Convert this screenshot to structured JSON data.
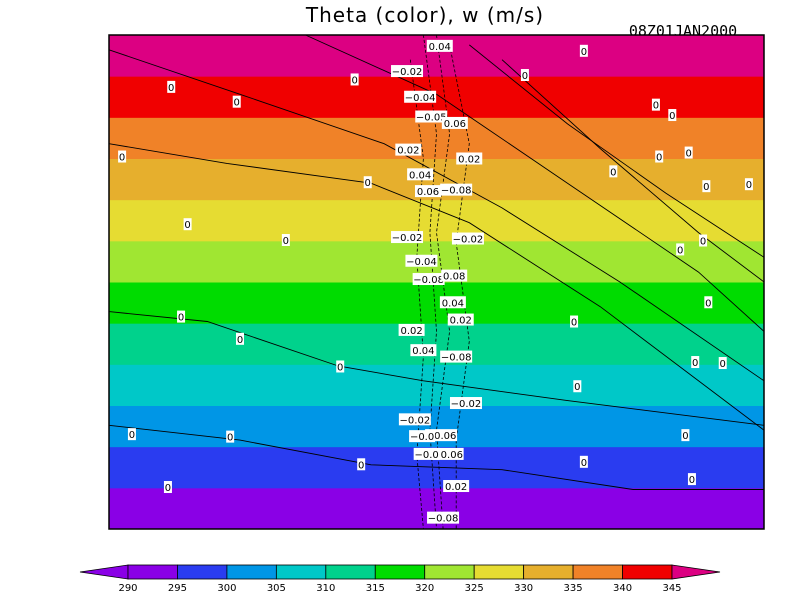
{
  "title": "Theta (color), w (m/s)",
  "timestamp": "08Z01JAN2000",
  "chart_data": {
    "type": "heatmap",
    "title": "Theta (color), w (m/s)",
    "timestamp": "08Z01JAN2000",
    "shaded_variable": "Theta",
    "contour_variable": "w (m/s)",
    "theta_levels": [
      290,
      295,
      300,
      305,
      310,
      315,
      320,
      325,
      330,
      335,
      340,
      345
    ],
    "bands_bottom_to_top": [
      {
        "range": [
          290,
          295
        ],
        "color": "#8a00e6"
      },
      {
        "range": [
          295,
          300
        ],
        "color": "#2a3cf0"
      },
      {
        "range": [
          300,
          305
        ],
        "color": "#0096e6"
      },
      {
        "range": [
          305,
          310
        ],
        "color": "#00c8c8"
      },
      {
        "range": [
          310,
          315
        ],
        "color": "#00d28c"
      },
      {
        "range": [
          315,
          320
        ],
        "color": "#00dc00"
      },
      {
        "range": [
          320,
          325
        ],
        "color": "#a0e632"
      },
      {
        "range": [
          325,
          330
        ],
        "color": "#e6dc32"
      },
      {
        "range": [
          330,
          335
        ],
        "color": "#e6af2d"
      },
      {
        "range": [
          335,
          340
        ],
        "color": "#f08228"
      },
      {
        "range": [
          340,
          345
        ],
        "color": "#f00000"
      },
      {
        "range": [
          345,
          350
        ],
        "color": "#dc0082"
      }
    ],
    "colorbar": {
      "ticks": [
        "290",
        "295",
        "300",
        "305",
        "310",
        "315",
        "320",
        "325",
        "330",
        "335",
        "340",
        "345"
      ],
      "colors": [
        "#8a00e6",
        "#8a00e6",
        "#2a3cf0",
        "#0096e6",
        "#00c8c8",
        "#00d28c",
        "#00dc00",
        "#a0e632",
        "#e6dc32",
        "#e6af2d",
        "#f08228",
        "#f00000",
        "#dc0082"
      ]
    },
    "w_contour_labels": [
      {
        "text": "0.04",
        "u": 0.505,
        "v": 0.022
      },
      {
        "text": "−0.02",
        "u": 0.455,
        "v": 0.073
      },
      {
        "text": "−0.04",
        "u": 0.475,
        "v": 0.125
      },
      {
        "text": "−0.05",
        "u": 0.492,
        "v": 0.165
      },
      {
        "text": "0.06",
        "u": 0.528,
        "v": 0.178
      },
      {
        "text": "0.02",
        "u": 0.457,
        "v": 0.232
      },
      {
        "text": "0.02",
        "u": 0.55,
        "v": 0.25
      },
      {
        "text": "0.04",
        "u": 0.475,
        "v": 0.282
      },
      {
        "text": "0.06",
        "u": 0.487,
        "v": 0.316
      },
      {
        "text": "−0.08",
        "u": 0.53,
        "v": 0.313
      },
      {
        "text": "−0.02",
        "u": 0.455,
        "v": 0.409
      },
      {
        "text": "−0.02",
        "u": 0.548,
        "v": 0.412
      },
      {
        "text": "−0.04",
        "u": 0.477,
        "v": 0.457
      },
      {
        "text": "−0.08",
        "u": 0.488,
        "v": 0.494
      },
      {
        "text": "0.08",
        "u": 0.527,
        "v": 0.487
      },
      {
        "text": "0.04",
        "u": 0.525,
        "v": 0.541
      },
      {
        "text": "0.02",
        "u": 0.537,
        "v": 0.576
      },
      {
        "text": "0.02",
        "u": 0.462,
        "v": 0.597
      },
      {
        "text": "0.04",
        "u": 0.48,
        "v": 0.638
      },
      {
        "text": "−0.08",
        "u": 0.53,
        "v": 0.651
      },
      {
        "text": "−0.02",
        "u": 0.545,
        "v": 0.745
      },
      {
        "text": "−0.02",
        "u": 0.467,
        "v": 0.778
      },
      {
        "text": "−0.06",
        "u": 0.507,
        "v": 0.81
      },
      {
        "text": "−0.0",
        "u": 0.478,
        "v": 0.812
      },
      {
        "text": "−0.06",
        "u": 0.517,
        "v": 0.848
      },
      {
        "text": "−0.0",
        "u": 0.485,
        "v": 0.848
      },
      {
        "text": "0.02",
        "u": 0.53,
        "v": 0.913
      },
      {
        "text": "−0.08",
        "u": 0.51,
        "v": 0.977
      }
    ],
    "zero_contour_labels": [
      {
        "text": "0",
        "u": 0.095,
        "v": 0.105
      },
      {
        "text": "0",
        "u": 0.195,
        "v": 0.135
      },
      {
        "text": "0",
        "u": 0.375,
        "v": 0.09
      },
      {
        "text": "0",
        "u": 0.02,
        "v": 0.246
      },
      {
        "text": "0",
        "u": 0.395,
        "v": 0.298
      },
      {
        "text": "0",
        "u": 0.12,
        "v": 0.383
      },
      {
        "text": "0",
        "u": 0.27,
        "v": 0.415
      },
      {
        "text": "0",
        "u": 0.725,
        "v": 0.032
      },
      {
        "text": "0",
        "u": 0.635,
        "v": 0.081
      },
      {
        "text": "0",
        "u": 0.835,
        "v": 0.141
      },
      {
        "text": "0",
        "u": 0.86,
        "v": 0.162
      },
      {
        "text": "0",
        "u": 0.84,
        "v": 0.246
      },
      {
        "text": "0",
        "u": 0.885,
        "v": 0.238
      },
      {
        "text": "0",
        "u": 0.77,
        "v": 0.276
      },
      {
        "text": "0",
        "u": 0.912,
        "v": 0.306
      },
      {
        "text": "0",
        "u": 0.977,
        "v": 0.302
      },
      {
        "text": "0",
        "u": 0.872,
        "v": 0.434
      },
      {
        "text": "0",
        "u": 0.907,
        "v": 0.416
      },
      {
        "text": "0",
        "u": 0.915,
        "v": 0.541
      },
      {
        "text": "0",
        "u": 0.11,
        "v": 0.57
      },
      {
        "text": "0",
        "u": 0.2,
        "v": 0.615
      },
      {
        "text": "0",
        "u": 0.71,
        "v": 0.58
      },
      {
        "text": "0",
        "u": 0.353,
        "v": 0.671
      },
      {
        "text": "0",
        "u": 0.715,
        "v": 0.711
      },
      {
        "text": "0",
        "u": 0.895,
        "v": 0.662
      },
      {
        "text": "0",
        "u": 0.937,
        "v": 0.664
      },
      {
        "text": "0",
        "u": 0.035,
        "v": 0.808
      },
      {
        "text": "0",
        "u": 0.185,
        "v": 0.813
      },
      {
        "text": "0",
        "u": 0.385,
        "v": 0.869
      },
      {
        "text": "0",
        "u": 0.725,
        "v": 0.864
      },
      {
        "text": "0",
        "u": 0.09,
        "v": 0.915
      },
      {
        "text": "0",
        "u": 0.88,
        "v": 0.81
      },
      {
        "text": "0",
        "u": 0.89,
        "v": 0.899
      }
    ]
  }
}
